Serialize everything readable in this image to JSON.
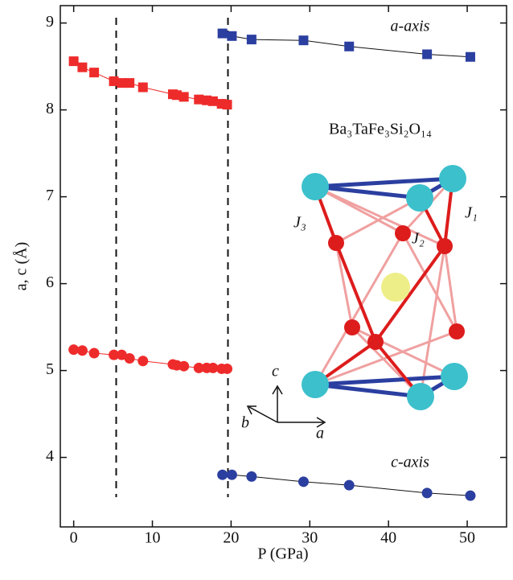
{
  "chart_data": {
    "type": "scatter",
    "xlabel": "P  (GPa)",
    "ylabel": "a, c  (Å)",
    "xlim": [
      -1.7,
      55
    ],
    "ylim": [
      3.2,
      9.2
    ],
    "xticks": [
      0,
      10,
      20,
      30,
      40,
      50
    ],
    "yticks": [
      4,
      5,
      6,
      7,
      8,
      9
    ],
    "vlines": [
      5.4,
      19.6
    ],
    "series": [
      {
        "name": "a-axis",
        "color": "#2b3fa0",
        "marker": "square",
        "x": [
          18.9,
          20.1,
          22.6,
          29.2,
          35.0,
          44.9,
          50.4
        ],
        "values": [
          8.88,
          8.85,
          8.81,
          8.8,
          8.73,
          8.64,
          8.61
        ]
      },
      {
        "color": "#ee2b2b",
        "marker": "square",
        "x": [
          0,
          1.1,
          2.6,
          5.1,
          6.1,
          7.1,
          8.8,
          12.6,
          13.1,
          14.0,
          15.9,
          16.9,
          17.7,
          18.8,
          19.5
        ],
        "values": [
          8.56,
          8.49,
          8.43,
          8.33,
          8.31,
          8.31,
          8.26,
          8.18,
          8.17,
          8.15,
          8.12,
          8.11,
          8.1,
          8.07,
          8.06
        ]
      },
      {
        "color": "#ee2b2b",
        "marker": "circle",
        "x": [
          0,
          1.1,
          2.6,
          5.1,
          6.1,
          7.1,
          8.8,
          12.6,
          13.1,
          14.0,
          15.9,
          16.9,
          17.7,
          18.8,
          19.5
        ],
        "values": [
          5.24,
          5.23,
          5.2,
          5.18,
          5.18,
          5.14,
          5.11,
          5.07,
          5.06,
          5.05,
          5.03,
          5.03,
          5.03,
          5.02,
          5.02
        ]
      },
      {
        "name": "c-axis",
        "color": "#2b3fa0",
        "marker": "circle",
        "x": [
          18.9,
          20.1,
          22.6,
          29.2,
          35.0,
          44.9,
          50.4
        ],
        "values": [
          3.8,
          3.8,
          3.78,
          3.72,
          3.68,
          3.59,
          3.56
        ]
      }
    ],
    "inset": {
      "formula": "Ba₃TaFe₃Si₂O₁₄",
      "j1": "J₁",
      "j2": "J₂",
      "j3": "J₃",
      "axis_a": "a",
      "axis_b": "b",
      "axis_c": "c"
    }
  }
}
